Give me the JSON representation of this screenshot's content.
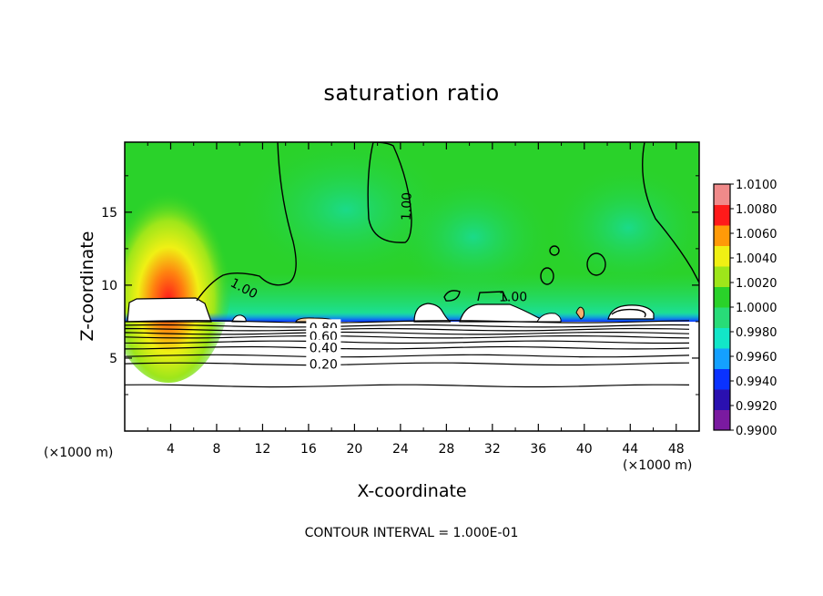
{
  "chart_data": {
    "type": "heatmap",
    "title": "saturation ratio",
    "xlabel": "X-coordinate",
    "ylabel": "Z-coordinate",
    "x_unit_left": "(×1000 m)",
    "x_unit_right": "(×1000 m)",
    "footer": "CONTOUR INTERVAL = 1.000E-01",
    "xlim": [
      0,
      50
    ],
    "ylim": [
      0,
      19.8
    ],
    "x_ticks": [
      4,
      8,
      12,
      16,
      20,
      24,
      28,
      32,
      36,
      40,
      44,
      48
    ],
    "x_tick_labels": [
      "4",
      "8",
      "12",
      "16",
      "20",
      "24",
      "28",
      "32",
      "36",
      "40",
      "44",
      "48"
    ],
    "y_ticks": [
      5,
      10,
      15
    ],
    "y_tick_labels": [
      "5",
      "10",
      "15"
    ],
    "colorbar": {
      "range": [
        0.99,
        1.01
      ],
      "labels": [
        "1.0100",
        "1.0080",
        "1.0060",
        "1.0040",
        "1.0020",
        "1.0000",
        "0.9980",
        "0.9960",
        "0.9940",
        "0.9920",
        "0.9900"
      ],
      "colors": [
        "#7a1aa0",
        "#2a10b0",
        "#0a32ff",
        "#14a0ff",
        "#12e6c8",
        "#28dc78",
        "#2ad22a",
        "#9ee61a",
        "#f0f014",
        "#ff9a08",
        "#ff1a1a",
        "#f08a8a"
      ]
    },
    "background_value": 1.0,
    "background_color": "#2ad22a",
    "contour_labels": [
      {
        "text": "1.00",
        "x": 10.4,
        "y": 9.8
      },
      {
        "text": "1.00",
        "x": 24.5,
        "y": 15.4
      },
      {
        "text": "1.00",
        "x": 33.8,
        "y": 9.2
      },
      {
        "text": "0.80",
        "x": 17.3,
        "y": 7.1
      },
      {
        "text": "0.60",
        "x": 17.3,
        "y": 6.5
      },
      {
        "text": "0.40",
        "x": 17.3,
        "y": 5.7
      },
      {
        "text": "0.20",
        "x": 17.3,
        "y": 4.6
      }
    ],
    "stratified_contour_levels_z": [
      7.5,
      7.2,
      6.95,
      6.7,
      6.45,
      6.1,
      5.7,
      5.15,
      4.6,
      3.1
    ]
  }
}
